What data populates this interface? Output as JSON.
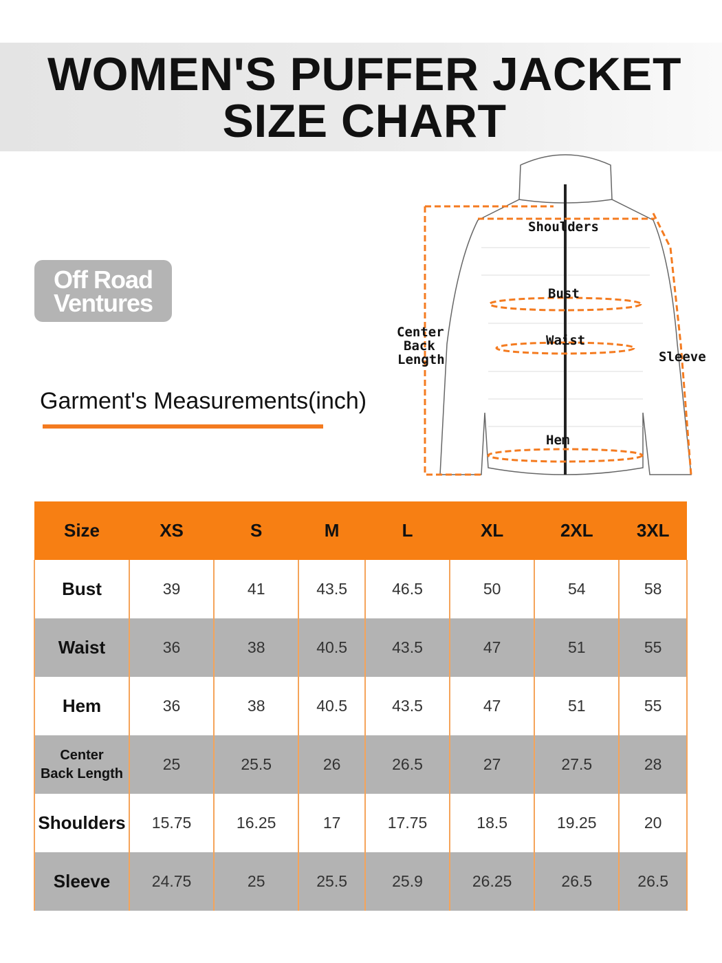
{
  "header": {
    "title_line1": "WOMEN'S PUFFER JACKET",
    "title_line2": "SIZE CHART"
  },
  "logo": {
    "text_line1": "Off Road",
    "text_line2": "Ventures"
  },
  "subtitle": "Garment's Measurements(inch)",
  "diagram": {
    "labels": {
      "shoulders": "Shoulders",
      "bust": "Bust",
      "waist": "Waist",
      "hem": "Hem",
      "sleeve": "Sleeve",
      "center_back_1": "Center",
      "center_back_2": "Back",
      "center_back_3": "Length"
    }
  },
  "colors": {
    "accent": "#f77f13",
    "alt_row": "#b3b3b3"
  },
  "chart_data": {
    "type": "table",
    "columns": [
      "Size",
      "XS",
      "S",
      "M",
      "L",
      "XL",
      "2XL",
      "3XL"
    ],
    "rows": [
      {
        "label": "Bust",
        "values": [
          "39",
          "41",
          "43.5",
          "46.5",
          "50",
          "54",
          "58"
        ]
      },
      {
        "label": "Waist",
        "values": [
          "36",
          "38",
          "40.5",
          "43.5",
          "47",
          "51",
          "55"
        ]
      },
      {
        "label": "Hem",
        "values": [
          "36",
          "38",
          "40.5",
          "43.5",
          "47",
          "51",
          "55"
        ]
      },
      {
        "label": "Center Back Length",
        "label_line1": "Center",
        "label_line2": "Back Length",
        "values": [
          "25",
          "25.5",
          "26",
          "26.5",
          "27",
          "27.5",
          "28"
        ]
      },
      {
        "label": "Shoulders",
        "values": [
          "15.75",
          "16.25",
          "17",
          "17.75",
          "18.5",
          "19.25",
          "20"
        ]
      },
      {
        "label": "Sleeve",
        "values": [
          "24.75",
          "25",
          "25.5",
          "25.9",
          "26.25",
          "26.5",
          "26.5"
        ]
      }
    ]
  }
}
